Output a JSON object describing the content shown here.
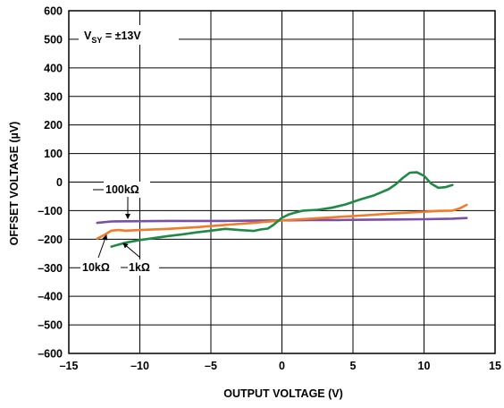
{
  "chart_data": {
    "type": "line",
    "xlabel": "OUTPUT VOLTAGE (V)",
    "ylabel": "OFFSET VOLTAGE (µV)",
    "xlim": [
      -15,
      15
    ],
    "ylim": [
      -600,
      600
    ],
    "x_ticks": [
      -15,
      -10,
      -5,
      0,
      5,
      10,
      15
    ],
    "y_ticks": [
      600,
      500,
      400,
      300,
      200,
      100,
      0,
      -100,
      -200,
      -300,
      -400,
      -500,
      -600
    ],
    "x_tick_labels": [
      "–15",
      "–10",
      "–5",
      "0",
      "5",
      "10",
      "15"
    ],
    "y_tick_labels": [
      "600",
      "500",
      "400",
      "300",
      "200",
      "100",
      "0",
      "–100",
      "–200",
      "–300",
      "–400",
      "–500",
      "–600"
    ],
    "grid": true,
    "annotations": {
      "supply": "V",
      "supply_sub": "SY",
      "supply_value": " = ±13V",
      "label_100k": "100kΩ",
      "label_10k": "10kΩ",
      "label_1k": "1kΩ"
    },
    "series": [
      {
        "name": "100kΩ",
        "color": "#7a4fa6",
        "points": [
          [
            -13,
            -143
          ],
          [
            -12,
            -138
          ],
          [
            -10,
            -137
          ],
          [
            -8,
            -136
          ],
          [
            -6,
            -136
          ],
          [
            -4,
            -136
          ],
          [
            -2,
            -135
          ],
          [
            0,
            -134
          ],
          [
            2,
            -133
          ],
          [
            4,
            -133
          ],
          [
            6,
            -132
          ],
          [
            8,
            -131
          ],
          [
            10,
            -130
          ],
          [
            12,
            -128
          ],
          [
            13,
            -126
          ]
        ]
      },
      {
        "name": "10kΩ",
        "color": "#f07b2a",
        "points": [
          [
            -13,
            -198
          ],
          [
            -12.5,
            -185
          ],
          [
            -12,
            -170
          ],
          [
            -11.5,
            -168
          ],
          [
            -11,
            -170
          ],
          [
            -10,
            -168
          ],
          [
            -8,
            -164
          ],
          [
            -6,
            -158
          ],
          [
            -4,
            -150
          ],
          [
            -2,
            -143
          ],
          [
            0,
            -134
          ],
          [
            2,
            -128
          ],
          [
            4,
            -122
          ],
          [
            6,
            -116
          ],
          [
            8,
            -109
          ],
          [
            10,
            -104
          ],
          [
            11,
            -101
          ],
          [
            12,
            -100
          ],
          [
            12.5,
            -92
          ],
          [
            13,
            -80
          ]
        ]
      },
      {
        "name": "1kΩ",
        "color": "#1f8a45",
        "points": [
          [
            -12,
            -226
          ],
          [
            -11,
            -212
          ],
          [
            -10,
            -203
          ],
          [
            -9,
            -196
          ],
          [
            -8,
            -189
          ],
          [
            -7,
            -183
          ],
          [
            -6,
            -176
          ],
          [
            -5,
            -170
          ],
          [
            -4,
            -164
          ],
          [
            -3,
            -168
          ],
          [
            -2,
            -171
          ],
          [
            -1.5,
            -166
          ],
          [
            -1,
            -163
          ],
          [
            -0.6,
            -150
          ],
          [
            0,
            -125
          ],
          [
            0.5,
            -113
          ],
          [
            1,
            -106
          ],
          [
            1.5,
            -100
          ],
          [
            2.5,
            -97
          ],
          [
            3.5,
            -90
          ],
          [
            4.5,
            -78
          ],
          [
            5.5,
            -61
          ],
          [
            6.5,
            -46
          ],
          [
            7.5,
            -25
          ],
          [
            8,
            -8
          ],
          [
            8.5,
            14
          ],
          [
            9,
            33
          ],
          [
            9.5,
            34
          ],
          [
            10,
            22
          ],
          [
            10.5,
            -5
          ],
          [
            11,
            -20
          ],
          [
            11.5,
            -18
          ],
          [
            12,
            -10
          ]
        ]
      }
    ]
  }
}
